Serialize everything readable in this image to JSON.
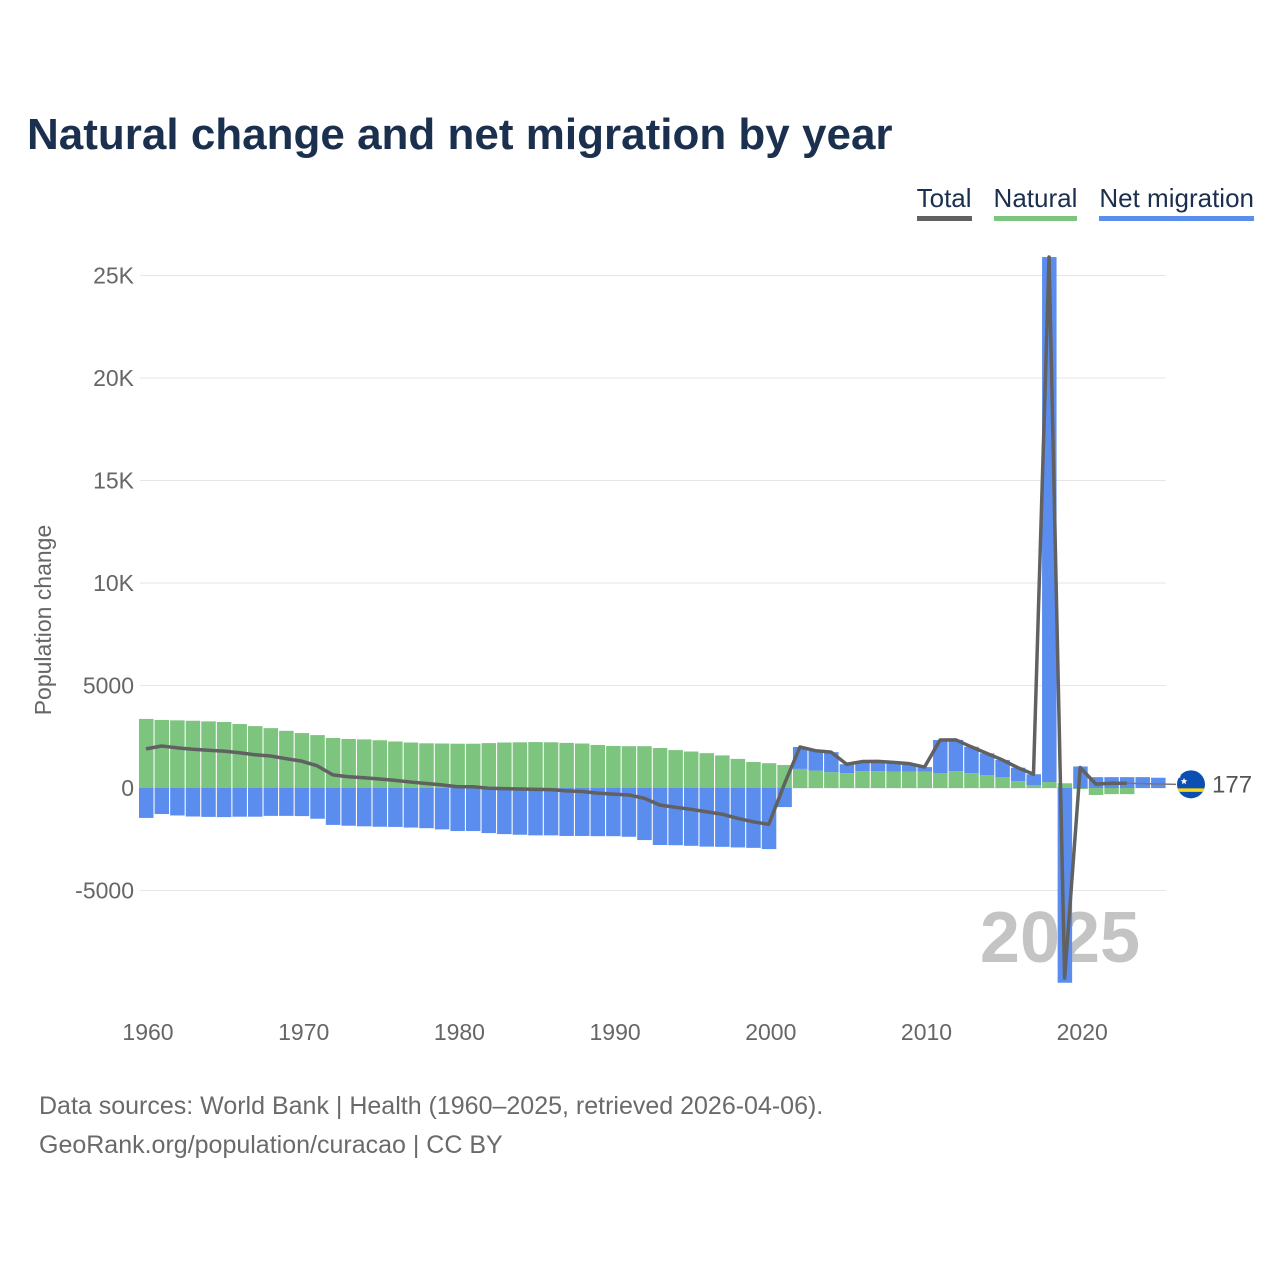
{
  "title": "Natural change and net migration by year",
  "legend": [
    {
      "label": "Total",
      "color": "#616161"
    },
    {
      "label": "Natural",
      "color": "#7dc47f"
    },
    {
      "label": "Net migration",
      "color": "#5b8def"
    }
  ],
  "footer": {
    "line1": "Data sources: World Bank | Health (1960–2025, retrieved 2026-04-06).",
    "line2": "GeoRank.org/population/curacao | CC BY"
  },
  "chart_data": {
    "type": "bar",
    "stacked": true,
    "title": "Natural change and net migration by year",
    "ylabel": "Population change",
    "xlabel": "",
    "ylim": [
      -9600,
      26000
    ],
    "yticks": [
      -5000,
      0,
      5000,
      10000,
      15000,
      20000,
      25000
    ],
    "ytick_labels": [
      "-5000",
      "0",
      "5000",
      "10K",
      "15K",
      "20K",
      "25K"
    ],
    "xticks": [
      1960,
      1970,
      1980,
      1990,
      2000,
      2010,
      2020
    ],
    "grid": true,
    "legend_position": "top-right",
    "year_label": "2025",
    "end_label": "177",
    "x_start": 1960,
    "series": [
      {
        "name": "Natural",
        "values": [
          3370,
          3320,
          3300,
          3280,
          3250,
          3220,
          3120,
          3020,
          2920,
          2790,
          2680,
          2580,
          2440,
          2390,
          2370,
          2330,
          2270,
          2220,
          2180,
          2170,
          2160,
          2160,
          2190,
          2220,
          2230,
          2240,
          2230,
          2200,
          2170,
          2100,
          2050,
          2040,
          2040,
          1950,
          1850,
          1780,
          1700,
          1590,
          1420,
          1270,
          1210,
          1120,
          930,
          850,
          770,
          720,
          820,
          820,
          800,
          800,
          800,
          730,
          820,
          720,
          620,
          520,
          330,
          130,
          290,
          230,
          -50,
          -340,
          -300,
          -300,
          null,
          null
        ]
      },
      {
        "name": "Net migration",
        "values": [
          -1460,
          -1270,
          -1340,
          -1390,
          -1410,
          -1420,
          -1400,
          -1400,
          -1360,
          -1360,
          -1370,
          -1500,
          -1800,
          -1840,
          -1870,
          -1890,
          -1900,
          -1930,
          -1960,
          -2020,
          -2100,
          -2100,
          -2200,
          -2250,
          -2280,
          -2310,
          -2310,
          -2340,
          -2340,
          -2350,
          -2350,
          -2380,
          -2540,
          -2780,
          -2790,
          -2820,
          -2860,
          -2870,
          -2900,
          -2920,
          -2980,
          -930,
          1070,
          970,
          980,
          440,
          470,
          480,
          450,
          390,
          220,
          1610,
          1530,
          1290,
          1070,
          850,
          660,
          540,
          25610,
          -9500,
          1050,
          530,
          530,
          530,
          530,
          500
        ]
      },
      {
        "name": "Total",
        "values": [
          1910,
          2050,
          1960,
          1890,
          1840,
          1800,
          1720,
          1620,
          1560,
          1430,
          1310,
          1080,
          640,
          550,
          500,
          440,
          370,
          290,
          220,
          150,
          60,
          60,
          -10,
          -30,
          -50,
          -70,
          -80,
          -140,
          -170,
          -250,
          -300,
          -340,
          -500,
          -830,
          -940,
          -1040,
          -1160,
          -1280,
          -1480,
          -1650,
          -1770,
          190,
          2000,
          1820,
          1750,
          1160,
          1290,
          1300,
          1250,
          1190,
          1020,
          2340,
          2350,
          2010,
          1690,
          1370,
          990,
          670,
          25900,
          -9270,
          1000,
          190,
          230,
          230,
          null,
          177
        ]
      }
    ]
  }
}
